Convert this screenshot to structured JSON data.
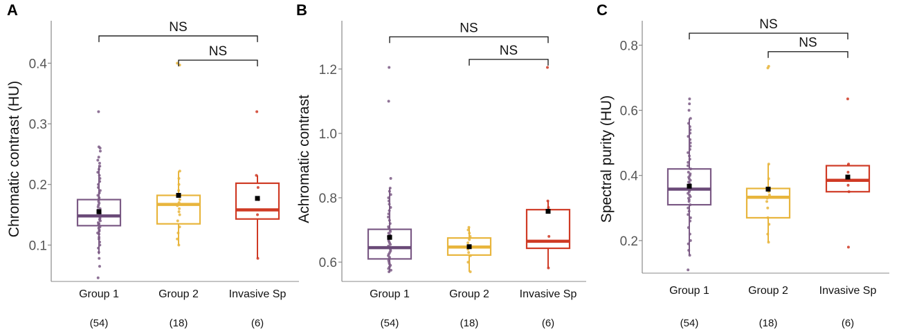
{
  "figure": {
    "colors": {
      "group1": "#7b5a85",
      "group1_median": "#6a4a78",
      "group2": "#e8b53c",
      "invasive": "#cf3a24",
      "mean_marker": "#000000",
      "axis": "#888888"
    }
  },
  "chart_data": [
    {
      "type": "box",
      "panel": "A",
      "ylabel": "Chromatic contrast (HU)",
      "ylim": [
        0.04,
        0.47
      ],
      "yticks": [
        0.1,
        0.2,
        0.3,
        0.4
      ],
      "ytick_labels": [
        "0.1",
        "0.2",
        "0.3",
        "0.4"
      ],
      "categories": [
        "Group 1",
        "Group 2",
        "Invasive Sp"
      ],
      "n_labels": [
        "(54)",
        "(18)",
        "(6)"
      ],
      "series": [
        {
          "name": "Group 1",
          "color_key": "group1",
          "median_color_key": "group1_median",
          "q1": 0.132,
          "median": 0.148,
          "q3": 0.175,
          "whisker_low": 0.085,
          "whisker_high": 0.232,
          "mean": 0.155,
          "points": [
            0.046,
            0.065,
            0.078,
            0.088,
            0.095,
            0.1,
            0.105,
            0.11,
            0.113,
            0.118,
            0.12,
            0.123,
            0.125,
            0.128,
            0.13,
            0.133,
            0.135,
            0.137,
            0.14,
            0.142,
            0.144,
            0.146,
            0.148,
            0.15,
            0.152,
            0.154,
            0.156,
            0.158,
            0.16,
            0.163,
            0.166,
            0.169,
            0.172,
            0.175,
            0.178,
            0.182,
            0.186,
            0.19,
            0.195,
            0.2,
            0.205,
            0.21,
            0.215,
            0.22,
            0.225,
            0.23,
            0.235,
            0.24,
            0.245,
            0.255,
            0.26,
            0.262,
            0.32,
            0.135
          ]
        },
        {
          "name": "Group 2",
          "color_key": "group2",
          "q1": 0.135,
          "median": 0.167,
          "q3": 0.182,
          "whisker_low": 0.1,
          "whisker_high": 0.222,
          "mean": 0.182,
          "points": [
            0.1,
            0.11,
            0.12,
            0.13,
            0.14,
            0.15,
            0.155,
            0.16,
            0.165,
            0.17,
            0.175,
            0.18,
            0.19,
            0.2,
            0.21,
            0.222,
            0.397,
            0.4
          ]
        },
        {
          "name": "Invasive Sp",
          "color_key": "invasive",
          "q1": 0.143,
          "median": 0.158,
          "q3": 0.202,
          "whisker_low": 0.078,
          "whisker_high": 0.215,
          "mean": 0.177,
          "points": [
            0.078,
            0.15,
            0.175,
            0.195,
            0.215,
            0.32
          ]
        }
      ],
      "significance": [
        {
          "from": "Group 1",
          "to": "Invasive Sp",
          "y": 0.445,
          "label": "NS"
        },
        {
          "from": "Group 2",
          "to": "Invasive Sp",
          "y": 0.405,
          "label": "NS"
        }
      ]
    },
    {
      "type": "box",
      "panel": "B",
      "ylabel": "Achromatic contrast",
      "ylim": [
        0.54,
        1.35
      ],
      "yticks": [
        0.6,
        0.8,
        1.0,
        1.2
      ],
      "ytick_labels": [
        "0.6",
        "0.8",
        "1.0",
        "1.2"
      ],
      "categories": [
        "Group 1",
        "Group 2",
        "Invasive Sp"
      ],
      "n_labels": [
        "(54)",
        "(18)",
        "(6)"
      ],
      "series": [
        {
          "name": "Group 1",
          "color_key": "group1",
          "median_color_key": "group1_median",
          "q1": 0.61,
          "median": 0.645,
          "q3": 0.702,
          "whisker_low": 0.57,
          "whisker_high": 0.83,
          "mean": 0.677,
          "points": [
            0.57,
            0.575,
            0.58,
            0.585,
            0.59,
            0.595,
            0.6,
            0.605,
            0.61,
            0.615,
            0.62,
            0.625,
            0.63,
            0.635,
            0.64,
            0.645,
            0.65,
            0.655,
            0.66,
            0.665,
            0.67,
            0.675,
            0.68,
            0.685,
            0.69,
            0.695,
            0.7,
            0.705,
            0.71,
            0.72,
            0.73,
            0.74,
            0.75,
            0.76,
            0.77,
            0.78,
            0.79,
            0.8,
            0.81,
            0.82,
            0.83,
            0.86,
            1.1,
            1.205
          ]
        },
        {
          "name": "Group 2",
          "color_key": "group2",
          "q1": 0.622,
          "median": 0.647,
          "q3": 0.675,
          "whisker_low": 0.57,
          "whisker_high": 0.708,
          "mean": 0.648,
          "points": [
            0.57,
            0.6,
            0.62,
            0.63,
            0.64,
            0.645,
            0.65,
            0.66,
            0.67,
            0.68,
            0.69,
            0.7,
            0.708
          ]
        },
        {
          "name": "Invasive Sp",
          "color_key": "invasive",
          "q1": 0.643,
          "median": 0.665,
          "q3": 0.763,
          "whisker_low": 0.582,
          "whisker_high": 0.79,
          "mean": 0.758,
          "points": [
            0.582,
            0.68,
            0.77,
            0.79,
            1.205
          ]
        }
      ],
      "significance": [
        {
          "from": "Group 1",
          "to": "Invasive Sp",
          "y": 1.3,
          "label": "NS"
        },
        {
          "from": "Group 2",
          "to": "Invasive Sp",
          "y": 1.23,
          "label": "NS"
        }
      ]
    },
    {
      "type": "box",
      "panel": "C",
      "ylabel": "Spectral purity (HU)",
      "ylim": [
        0.1,
        0.875
      ],
      "yticks": [
        0.2,
        0.4,
        0.6,
        0.8
      ],
      "ytick_labels": [
        "0.2",
        "0.4",
        "0.6",
        "0.8"
      ],
      "categories": [
        "Group 1",
        "Group 2",
        "Invasive Sp"
      ],
      "n_labels": [
        "(54)",
        "(18)",
        "(6)"
      ],
      "series": [
        {
          "name": "Group 1",
          "color_key": "group1",
          "median_color_key": "group1_median",
          "q1": 0.31,
          "median": 0.358,
          "q3": 0.42,
          "whisker_low": 0.155,
          "whisker_high": 0.575,
          "mean": 0.367,
          "points": [
            0.11,
            0.155,
            0.17,
            0.19,
            0.2,
            0.22,
            0.24,
            0.26,
            0.27,
            0.28,
            0.29,
            0.3,
            0.31,
            0.32,
            0.325,
            0.33,
            0.335,
            0.34,
            0.345,
            0.35,
            0.355,
            0.36,
            0.365,
            0.37,
            0.375,
            0.38,
            0.385,
            0.39,
            0.395,
            0.4,
            0.405,
            0.41,
            0.42,
            0.43,
            0.44,
            0.45,
            0.46,
            0.47,
            0.48,
            0.49,
            0.5,
            0.51,
            0.52,
            0.53,
            0.54,
            0.55,
            0.56,
            0.575,
            0.6,
            0.62,
            0.635
          ]
        },
        {
          "name": "Group 2",
          "color_key": "group2",
          "q1": 0.27,
          "median": 0.333,
          "q3": 0.36,
          "whisker_low": 0.195,
          "whisker_high": 0.435,
          "mean": 0.358,
          "points": [
            0.195,
            0.22,
            0.25,
            0.27,
            0.3,
            0.32,
            0.33,
            0.34,
            0.35,
            0.36,
            0.39,
            0.435,
            0.73,
            0.735
          ]
        },
        {
          "name": "Invasive Sp",
          "color_key": "invasive",
          "q1": 0.35,
          "median": 0.385,
          "q3": 0.43,
          "whisker_low": 0.35,
          "whisker_high": 0.435,
          "mean": 0.395,
          "points": [
            0.18,
            0.35,
            0.37,
            0.41,
            0.435,
            0.635
          ]
        }
      ],
      "significance": [
        {
          "from": "Group 1",
          "to": "Invasive Sp",
          "y": 0.845,
          "label": "NS"
        },
        {
          "from": "Group 2",
          "to": "Invasive Sp",
          "y": 0.78,
          "label": "NS"
        }
      ]
    }
  ]
}
